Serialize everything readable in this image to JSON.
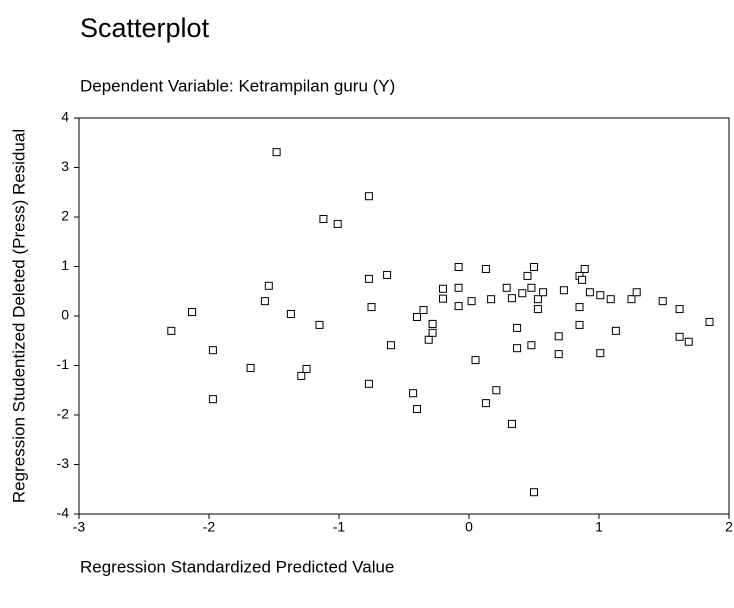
{
  "chart_data": {
    "type": "scatter",
    "title": "Scatterplot",
    "subtitle": "Dependent Variable: Ketrampilan guru (Y)",
    "xlabel": "Regression Standardized Predicted Value",
    "ylabel": "Regression Studentized Deleted (Press) Residual",
    "xlim": [
      -3,
      2
    ],
    "ylim": [
      -4,
      4
    ],
    "xticks": [
      -3,
      -2,
      -1,
      0,
      1,
      2
    ],
    "yticks": [
      -4,
      -3,
      -2,
      -1,
      0,
      1,
      2,
      3,
      4
    ],
    "color": "#000000",
    "x": [
      -2.29,
      -2.13,
      -1.97,
      -1.97,
      -1.68,
      -1.48,
      -1.57,
      -1.54,
      -1.37,
      -1.29,
      -1.25,
      -1.15,
      -1.12,
      -1.01,
      -0.77,
      -0.77,
      -0.75,
      -0.77,
      -0.63,
      -0.6,
      -0.43,
      -0.4,
      -0.4,
      -0.35,
      -0.31,
      -0.28,
      -0.28,
      -0.2,
      -0.2,
      -0.08,
      -0.08,
      -0.08,
      0.02,
      0.05,
      0.13,
      0.17,
      0.13,
      0.21,
      0.29,
      0.33,
      0.33,
      0.37,
      0.37,
      0.41,
      0.45,
      0.48,
      0.48,
      0.5,
      0.5,
      0.53,
      0.53,
      0.57,
      0.73,
      0.69,
      0.69,
      0.85,
      0.87,
      0.89,
      0.85,
      0.85,
      0.93,
      1.01,
      1.01,
      1.09,
      1.13,
      1.25,
      1.29,
      1.49,
      1.62,
      1.62,
      1.69,
      1.85
    ],
    "values": [
      -0.3,
      0.08,
      -0.69,
      -1.68,
      -1.05,
      3.31,
      0.3,
      0.61,
      0.04,
      -1.21,
      -1.07,
      -0.18,
      1.96,
      1.86,
      2.42,
      0.75,
      0.18,
      -1.37,
      0.83,
      -0.59,
      -1.56,
      -0.02,
      -1.88,
      0.12,
      -0.48,
      -0.16,
      -0.34,
      0.55,
      0.35,
      0.99,
      0.57,
      0.2,
      0.3,
      -0.89,
      0.95,
      0.34,
      -1.76,
      -1.5,
      0.57,
      0.36,
      -2.18,
      -0.24,
      -0.65,
      0.46,
      0.81,
      -0.59,
      0.57,
      0.99,
      -3.56,
      0.34,
      0.14,
      0.48,
      0.52,
      -0.41,
      -0.77,
      0.81,
      0.73,
      0.95,
      0.18,
      -0.18,
      0.48,
      0.42,
      -0.75,
      0.34,
      -0.3,
      0.34,
      0.48,
      0.3,
      0.14,
      -0.42,
      -0.52,
      -0.12
    ]
  }
}
